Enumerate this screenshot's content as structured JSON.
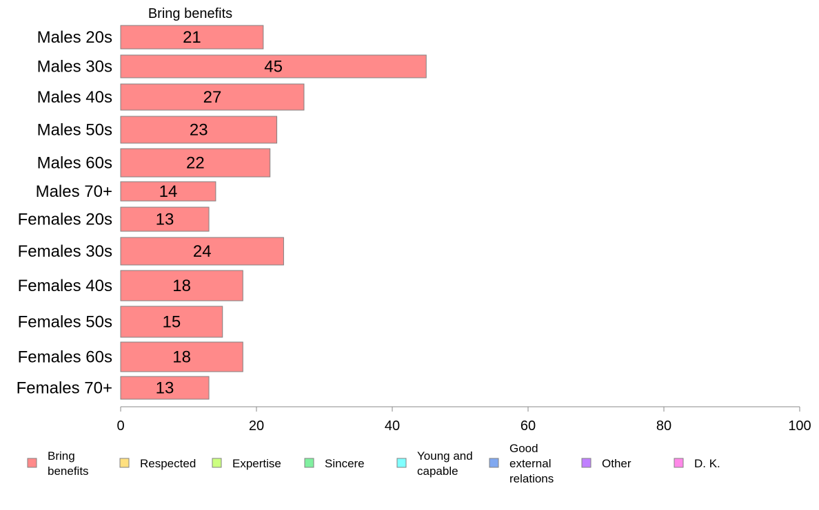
{
  "chart_data": {
    "type": "bar",
    "orientation": "horizontal",
    "title": "Bring benefits",
    "categories": [
      "Males 20s",
      "Males 30s",
      "Males 40s",
      "Males 50s",
      "Males 60s",
      "Males 70+",
      "Females 20s",
      "Females 30s",
      "Females 40s",
      "Females 50s",
      "Females 60s",
      "Females 70+"
    ],
    "series": [
      {
        "name": "Bring benefits",
        "values": [
          21,
          45,
          27,
          23,
          22,
          14,
          13,
          24,
          18,
          15,
          18,
          13
        ]
      }
    ],
    "xlim": [
      0,
      100
    ],
    "xticks": [
      0,
      20,
      40,
      60,
      80,
      100
    ],
    "grid": false,
    "bar_color": "#ff8a8a",
    "legend_position": "bottom",
    "legend": [
      {
        "label": "Bring benefits",
        "color": "#ff8a8a"
      },
      {
        "label": "Respected",
        "color": "#ffe080"
      },
      {
        "label": "Expertise",
        "color": "#ccff80"
      },
      {
        "label": "Sincere",
        "color": "#80f0a0"
      },
      {
        "label": "Young and capable",
        "color": "#80ffff"
      },
      {
        "label": "Good external relations",
        "color": "#80a8f0"
      },
      {
        "label": "Other",
        "color": "#c080ff"
      },
      {
        "label": "D. K.",
        "color": "#ff88e8"
      }
    ]
  }
}
